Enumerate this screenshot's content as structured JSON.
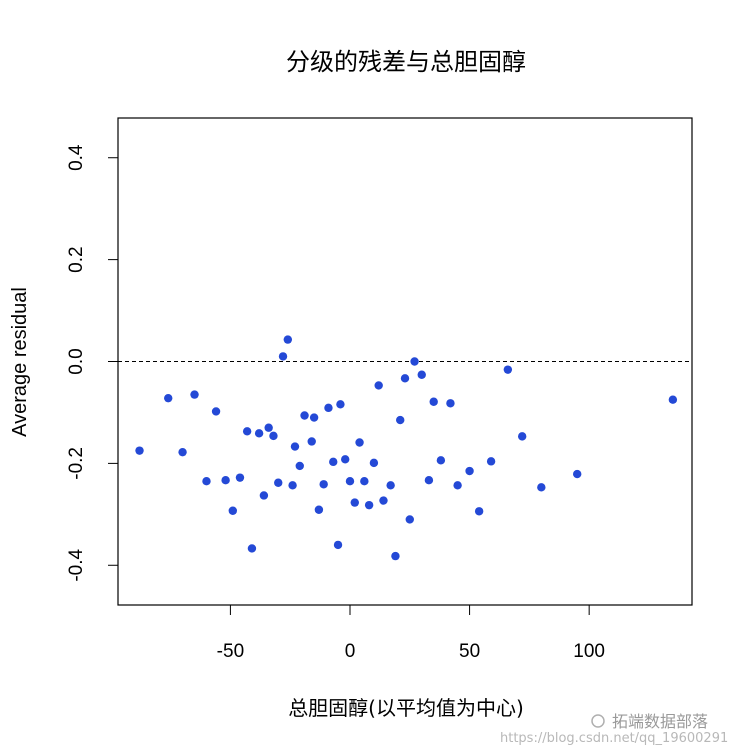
{
  "chart_data": {
    "type": "scatter",
    "title": "分级的残差与总胆固醇",
    "xlabel": "总胆固醇(以平均值为中心)",
    "ylabel": "Average residual",
    "xlim": [
      -97,
      143
    ],
    "ylim": [
      -0.478,
      0.478
    ],
    "xticks": [
      -50,
      0,
      50,
      100
    ],
    "yticks": [
      -0.4,
      -0.2,
      0.0,
      0.2,
      0.4
    ],
    "xtick_labels": [
      "-50",
      "0",
      "50",
      "100"
    ],
    "ytick_labels": [
      "-0.4",
      "-0.2",
      "0.0",
      "0.2",
      "0.4"
    ],
    "reference_line_y": 0.0,
    "reference_line_style": "dashed",
    "grid": false,
    "point_color": "#2449d6",
    "points": [
      {
        "x": -88,
        "y": -0.175
      },
      {
        "x": -76,
        "y": -0.072
      },
      {
        "x": -70,
        "y": -0.178
      },
      {
        "x": -65,
        "y": -0.065
      },
      {
        "x": -60,
        "y": -0.235
      },
      {
        "x": -56,
        "y": -0.098
      },
      {
        "x": -52,
        "y": -0.233
      },
      {
        "x": -49,
        "y": -0.293
      },
      {
        "x": -46,
        "y": -0.228
      },
      {
        "x": -43,
        "y": -0.137
      },
      {
        "x": -41,
        "y": -0.367
      },
      {
        "x": -38,
        "y": -0.141
      },
      {
        "x": -36,
        "y": -0.263
      },
      {
        "x": -34,
        "y": -0.13
      },
      {
        "x": -32,
        "y": -0.146
      },
      {
        "x": -30,
        "y": -0.238
      },
      {
        "x": -28,
        "y": 0.01
      },
      {
        "x": -26,
        "y": 0.043
      },
      {
        "x": -24,
        "y": -0.243
      },
      {
        "x": -23,
        "y": -0.167
      },
      {
        "x": -21,
        "y": -0.205
      },
      {
        "x": -19,
        "y": -0.106
      },
      {
        "x": -16,
        "y": -0.157
      },
      {
        "x": -15,
        "y": -0.11
      },
      {
        "x": -13,
        "y": -0.291
      },
      {
        "x": -11,
        "y": -0.241
      },
      {
        "x": -9,
        "y": -0.091
      },
      {
        "x": -7,
        "y": -0.197
      },
      {
        "x": -5,
        "y": -0.36
      },
      {
        "x": -4,
        "y": -0.084
      },
      {
        "x": -2,
        "y": -0.192
      },
      {
        "x": 0,
        "y": -0.235
      },
      {
        "x": 2,
        "y": -0.277
      },
      {
        "x": 4,
        "y": -0.159
      },
      {
        "x": 6,
        "y": -0.235
      },
      {
        "x": 8,
        "y": -0.282
      },
      {
        "x": 10,
        "y": -0.199
      },
      {
        "x": 12,
        "y": -0.047
      },
      {
        "x": 14,
        "y": -0.273
      },
      {
        "x": 17,
        "y": -0.243
      },
      {
        "x": 19,
        "y": -0.382
      },
      {
        "x": 21,
        "y": -0.115
      },
      {
        "x": 23,
        "y": -0.033
      },
      {
        "x": 25,
        "y": -0.31
      },
      {
        "x": 27,
        "y": 0.0
      },
      {
        "x": 30,
        "y": -0.026
      },
      {
        "x": 33,
        "y": -0.233
      },
      {
        "x": 35,
        "y": -0.079
      },
      {
        "x": 38,
        "y": -0.194
      },
      {
        "x": 42,
        "y": -0.082
      },
      {
        "x": 45,
        "y": -0.243
      },
      {
        "x": 50,
        "y": -0.215
      },
      {
        "x": 54,
        "y": -0.294
      },
      {
        "x": 59,
        "y": -0.196
      },
      {
        "x": 66,
        "y": -0.016
      },
      {
        "x": 72,
        "y": -0.147
      },
      {
        "x": 80,
        "y": -0.247
      },
      {
        "x": 95,
        "y": -0.221
      },
      {
        "x": 135,
        "y": -0.075
      }
    ]
  },
  "watermark": {
    "main_text": "拓端数据部落",
    "url_text": "https://blog.csdn.net/qq_19600291"
  }
}
